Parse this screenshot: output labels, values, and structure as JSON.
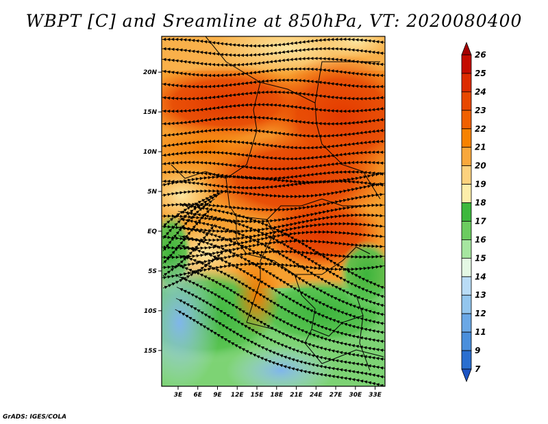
{
  "title": "WBPT [C] and Sreamline at 850hPa, VT: 2020080400",
  "credit": "GrADS: IGES/COLA",
  "map": {
    "lat_ticks": [
      "20N",
      "15N",
      "10N",
      "5N",
      "EQ",
      "5S",
      "10S",
      "15S"
    ],
    "lon_ticks": [
      "3E",
      "6E",
      "9E",
      "12E",
      "15E",
      "18E",
      "21E",
      "24E",
      "27E",
      "30E",
      "33E"
    ],
    "lon_range": [
      0.5,
      34.5
    ],
    "lat_range": [
      -19.5,
      24.5
    ]
  },
  "colorbar": {
    "labels": [
      "26",
      "25",
      "24",
      "23",
      "22",
      "21",
      "20",
      "19",
      "18",
      "17",
      "16",
      "15",
      "14",
      "13",
      "12",
      "11",
      "9",
      "7"
    ],
    "colors": [
      "#a50000",
      "#c40c00",
      "#dd2b00",
      "#e84800",
      "#f06000",
      "#f78200",
      "#f9a83c",
      "#fdd27e",
      "#fdeeaa",
      "#3db83d",
      "#6ccc60",
      "#a6e6a0",
      "#e4f8e4",
      "#b9dcf6",
      "#93c6ee",
      "#6ba8e6",
      "#4a8fdc",
      "#2a6fd0",
      "#1c54c4"
    ]
  }
}
